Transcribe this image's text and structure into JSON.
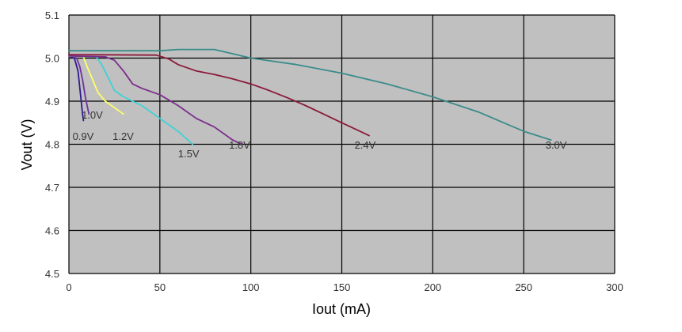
{
  "chart_data": {
    "type": "line",
    "title": "",
    "xlabel": "Iout (mA)",
    "ylabel": "Vout (V)",
    "xlim": [
      0,
      300
    ],
    "ylim": [
      4.5,
      5.1
    ],
    "xticks": [
      0,
      50,
      100,
      150,
      200,
      250,
      300
    ],
    "yticks": [
      4.5,
      4.6,
      4.7,
      4.8,
      4.9,
      5.0,
      5.1
    ],
    "xtick_labels": [
      "0",
      "50",
      "100",
      "150",
      "200",
      "250",
      "300"
    ],
    "ytick_labels": [
      "4.5",
      "4.6",
      "4.7",
      "4.8",
      "4.9",
      "5.0",
      "5.1"
    ],
    "grid": true,
    "legend": "none",
    "plot_background": "#c0c0c0",
    "grid_color": "#000000",
    "series": [
      {
        "name": "0.9V",
        "color": "#2e1a8e",
        "x": [
          0,
          3,
          5,
          6,
          7,
          7.5,
          8
        ],
        "y": [
          5.005,
          5.0,
          4.97,
          4.93,
          4.89,
          4.87,
          4.855
        ]
      },
      {
        "name": "1.0V",
        "color": "#7030a0",
        "x": [
          0,
          4,
          6,
          7.5,
          9,
          10,
          11
        ],
        "y": [
          5.005,
          5.003,
          4.98,
          4.95,
          4.91,
          4.89,
          4.87
        ]
      },
      {
        "name": "1.2V",
        "color": "#ffff66",
        "x": [
          0,
          8,
          10,
          13,
          16,
          20,
          25,
          30
        ],
        "y": [
          5.005,
          5.003,
          4.98,
          4.95,
          4.92,
          4.9,
          4.885,
          4.87
        ]
      },
      {
        "name": "1.5V",
        "color": "#3fd1d6",
        "x": [
          0,
          15,
          18,
          21,
          25,
          30,
          40,
          50,
          60,
          68
        ],
        "y": [
          5.005,
          5.003,
          4.985,
          4.96,
          4.925,
          4.91,
          4.89,
          4.86,
          4.83,
          4.8
        ]
      },
      {
        "name": "1.8V",
        "color": "#7b2d8b",
        "x": [
          0,
          20,
          25,
          30,
          35,
          40,
          50,
          60,
          70,
          80,
          90,
          95
        ],
        "y": [
          5.005,
          5.003,
          4.995,
          4.97,
          4.94,
          4.93,
          4.915,
          4.89,
          4.86,
          4.84,
          4.81,
          4.8
        ]
      },
      {
        "name": "2.4V",
        "color": "#8b1a3a",
        "x": [
          0,
          48,
          55,
          60,
          70,
          80,
          90,
          100,
          110,
          120,
          130,
          140,
          150,
          160,
          165
        ],
        "y": [
          5.008,
          5.007,
          4.998,
          4.985,
          4.97,
          4.962,
          4.952,
          4.94,
          4.925,
          4.908,
          4.89,
          4.87,
          4.85,
          4.83,
          4.82
        ]
      },
      {
        "name": "3.0V",
        "color": "#3b8b8b",
        "x": [
          0,
          50,
          60,
          70,
          80,
          90,
          100,
          125,
          150,
          175,
          200,
          225,
          250,
          265
        ],
        "y": [
          5.017,
          5.017,
          5.02,
          5.02,
          5.02,
          5.01,
          5.0,
          4.985,
          4.965,
          4.94,
          4.91,
          4.875,
          4.83,
          4.81
        ]
      }
    ],
    "series_labels": [
      {
        "text": "0.9V",
        "x": 2,
        "y": 4.81
      },
      {
        "text": "1.0V",
        "x": 7,
        "y": 4.86
      },
      {
        "text": "1.2V",
        "x": 24,
        "y": 4.81
      },
      {
        "text": "1.5V",
        "x": 60,
        "y": 4.77
      },
      {
        "text": "1.8V",
        "x": 88,
        "y": 4.79
      },
      {
        "text": "2.4V",
        "x": 157,
        "y": 4.79
      },
      {
        "text": "3.0V",
        "x": 262,
        "y": 4.79
      }
    ]
  }
}
